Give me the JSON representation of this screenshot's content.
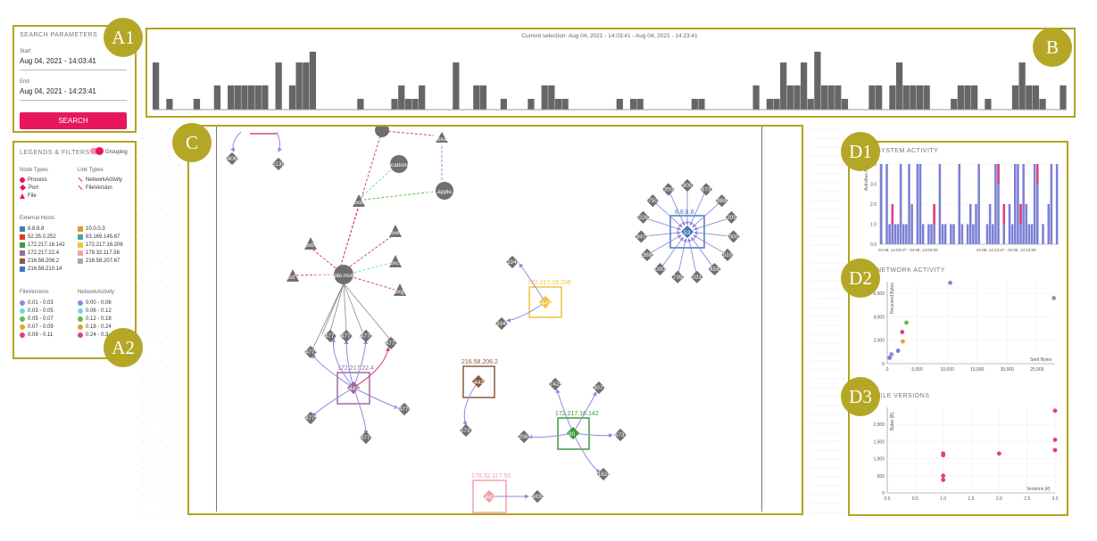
{
  "search": {
    "title": "SEARCH PARAMETERS",
    "start_label": "Start",
    "start_value": "Aug 04, 2021 - 14:03:41",
    "end_label": "End",
    "end_value": "Aug 04, 2021 - 14:23:41",
    "button": "SEARCH"
  },
  "legends": {
    "title": "LEGENDS & FILTERS",
    "grouping": "Grouping",
    "node_types_title": "Node Types",
    "node_types": [
      "Process",
      "Port",
      "File"
    ],
    "link_types_title": "Link Types",
    "link_types": [
      "NetworkActivity",
      "FileVersion"
    ],
    "external_title": "External Hosts",
    "hosts_left": [
      "8.8.8.8",
      "52.35.0.252",
      "172.217.16.142",
      "172.217.22.4",
      "216.58.206.2",
      "216.58.210.14"
    ],
    "hosts_right": [
      "10.0.0.3",
      "83.169.145.67",
      "172.217.16.206",
      "178.32.117.56",
      "216.58.207.67"
    ],
    "fileversions_title": "FileVersions",
    "fileversions": [
      "0.01 - 0.03",
      "0.03 - 0.05",
      "0.05 - 0.07",
      "0.07 - 0.09",
      "0.09 - 0.11"
    ],
    "network_title": "NetworkActivity",
    "network": [
      "0.00 - 0.06",
      "0.06 - 0.12",
      "0.12 - 0.18",
      "0.18 - 0.24",
      "0.24 - 0.3"
    ]
  },
  "timeline": {
    "selection": "Current selection: Aug 04, 2021 - 14:03:41 - Aug 04, 2021 - 14:23:41"
  },
  "graph": {
    "process_main": "com.apple.mobilemail",
    "process_mail2": "com.apple.mail",
    "process_location": "locationd",
    "host_a": "172.217.22.4",
    "host_b": "172.217.16.206",
    "host_c": "216.58.206.2",
    "host_d": "172.217.16.142",
    "host_e": "178.32.117.56",
    "host_f": "8.8.8.8",
    "port_443": "443",
    "port_53": "53",
    "port_80": "80",
    "ports_f": [
      "19002",
      "56737",
      "18883",
      "22058",
      "60007",
      "35100",
      "14567",
      "20314",
      "17391",
      "50008",
      "53885",
      "19479",
      "10261",
      "47508",
      "33504"
    ],
    "ports_a": [
      "54771",
      "54773",
      "54770",
      "54772",
      "54775",
      "54776",
      "54779",
      "54778"
    ],
    "ports_b": [
      "53346",
      "53345"
    ],
    "ports_c": [
      "35737"
    ],
    "ports_d": [
      "47425",
      "53079",
      "52065",
      "56733",
      "41626"
    ],
    "ports_e": [
      "56830"
    ],
    "ports_top": [
      "54065",
      "35135"
    ],
    "files": [
      "bxa",
      "bxd",
      "bxe",
      "bxb",
      "bxf",
      "bxc",
      "bxg"
    ]
  },
  "d1": {
    "title": "SYSTEM ACTIVITY",
    "ylabel": "Activities #",
    "yticks": [
      "4.0",
      "3.0",
      "2.0",
      "1.0",
      "0.0"
    ],
    "xlabel_left": "04.08, 14:03:47 - 04.08, 14:03:59",
    "xlabel_right": "04.08, 14:13:47 - 04.08, 14:13:59"
  },
  "d2": {
    "title": "NETWORK ACTIVITY",
    "ylabel": "Received Bytes",
    "xlabel": "Sent Bytes",
    "yticks": [
      "6,000",
      "4,000",
      "2,000",
      "0"
    ],
    "xticks": [
      "0",
      "5,000",
      "10,000",
      "15,000",
      "20,000",
      "25,000"
    ]
  },
  "d3": {
    "title": "FILE VERSIONS",
    "ylabel": "Bytes [B]",
    "xlabel": "Versions [#]",
    "yticks": [
      "2,000",
      "1,500",
      "1,000",
      "500",
      "0"
    ],
    "xticks": [
      "0.0",
      "0.5",
      "1.0",
      "1.5",
      "2.0",
      "2.5",
      "3.0"
    ]
  },
  "tags": {
    "a1": "A1",
    "a2": "A2",
    "b": "B",
    "c": "C",
    "d1": "D1",
    "d2": "D2",
    "d3": "D3"
  },
  "colors": {
    "accent": "#e8175d",
    "frame": "#b3a31f",
    "node": "#6f6f6f",
    "link": "#8e88e0"
  },
  "chart_data": [
    {
      "type": "bar",
      "name": "timeline",
      "values": [
        3.5,
        0,
        0.8,
        0,
        0,
        0,
        0.8,
        0,
        0,
        1.8,
        0,
        1.8,
        1.8,
        1.8,
        1.8,
        1.8,
        1.8,
        0,
        3.5,
        0,
        1.8,
        3.5,
        3.5,
        4.3,
        0,
        0,
        0,
        0,
        0,
        0,
        0.8,
        0,
        0,
        0,
        0,
        0.8,
        1.8,
        0.8,
        0.8,
        1.8,
        0,
        0,
        0,
        0,
        3.5,
        0,
        0,
        1.8,
        1.8,
        0,
        0,
        0.8,
        0,
        0,
        0,
        0.8,
        0,
        1.8,
        1.8,
        0.8,
        0.8,
        0,
        0,
        0,
        0,
        0,
        0,
        0,
        0.8,
        0,
        0.8,
        0.8,
        0,
        0,
        0,
        0,
        0,
        0,
        0,
        0.8,
        0.8,
        0,
        0,
        0,
        0,
        0,
        0,
        0,
        1.8,
        0,
        0.8,
        0.8,
        3.5,
        1.8,
        1.8,
        3.5,
        0.8,
        4.3,
        1.8,
        1.8,
        1.8,
        0.8,
        0,
        0,
        0,
        1.8,
        1.8,
        0,
        1.8,
        3.5,
        1.8,
        1.8,
        1.8,
        1.8,
        0,
        0,
        0,
        0.8,
        1.8,
        1.8,
        1.8,
        0,
        0.8,
        0,
        0,
        0,
        1.8,
        3.5,
        1.8,
        1.8,
        0.8,
        0,
        0,
        1.8
      ]
    },
    {
      "type": "bar",
      "name": "system-activity",
      "ylim": [
        0,
        4
      ],
      "series": [
        {
          "name": "NetworkActivity",
          "color": "#7b7fd6"
        },
        {
          "name": "FileVersion",
          "color": "#e0407a"
        }
      ]
    },
    {
      "type": "scatter",
      "name": "network-activity",
      "xlabel": "Sent Bytes",
      "ylabel": "Received Bytes",
      "xlim": [
        0,
        28000
      ],
      "ylim": [
        0,
        7000
      ],
      "points": [
        {
          "x": 400,
          "y": 500,
          "color": "#7b7fd6"
        },
        {
          "x": 700,
          "y": 800,
          "color": "#9b88c9"
        },
        {
          "x": 1800,
          "y": 1100,
          "color": "#7b7fd6"
        },
        {
          "x": 2600,
          "y": 1900,
          "color": "#e8a030"
        },
        {
          "x": 2500,
          "y": 2700,
          "color": "#e0407a"
        },
        {
          "x": 3200,
          "y": 3500,
          "color": "#5cbf4a"
        },
        {
          "x": 10500,
          "y": 6900,
          "color": "#6f8fd8"
        },
        {
          "x": 27800,
          "y": 5600,
          "color": "#a08f8f"
        }
      ]
    },
    {
      "type": "scatter",
      "name": "file-versions",
      "xlabel": "Versions [#]",
      "ylabel": "Bytes [B]",
      "xlim": [
        0,
        3
      ],
      "ylim": [
        0,
        2500
      ],
      "points": [
        {
          "x": 1,
          "y": 1150
        },
        {
          "x": 1,
          "y": 1100
        },
        {
          "x": 1,
          "y": 500
        },
        {
          "x": 1,
          "y": 380
        },
        {
          "x": 2,
          "y": 1150
        },
        {
          "x": 3,
          "y": 2400
        },
        {
          "x": 3,
          "y": 1550
        },
        {
          "x": 3,
          "y": 1250
        }
      ]
    }
  ]
}
